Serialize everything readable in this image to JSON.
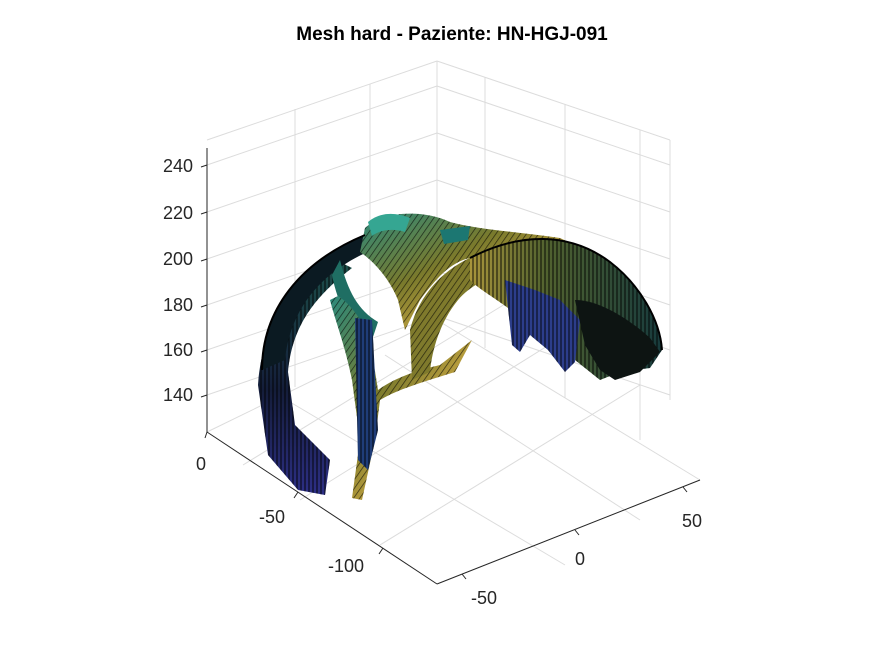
{
  "chart_data": {
    "type": "surface",
    "title": "Mesh hard - Paziente: HN-HGJ-091",
    "xlabel": "",
    "ylabel": "",
    "zlabel": "",
    "z_ticks": [
      "240",
      "220",
      "200",
      "180",
      "160",
      "140"
    ],
    "y_ticks": [
      "0",
      "-50",
      "-100"
    ],
    "x_ticks": [
      "50",
      "0",
      "-50"
    ],
    "zlim": [
      125,
      248
    ],
    "grid": true,
    "colormap": "viridis-like with black mesh edges",
    "colors": {
      "edge": "#000000",
      "low": "#2b2a7a",
      "mid": "#1f6f6f",
      "high": "#c8a83a"
    }
  }
}
